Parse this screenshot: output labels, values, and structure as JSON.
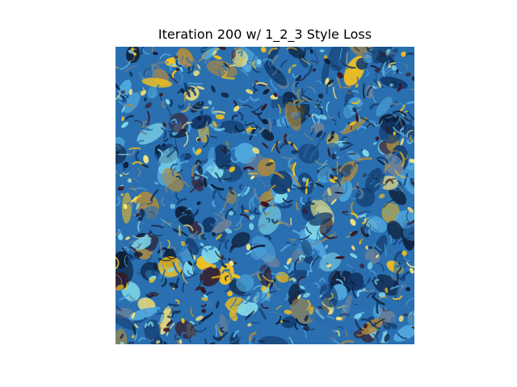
{
  "figure": {
    "title": "Iteration 200 w/ 1_2_3 Style Loss"
  },
  "image": {
    "description_icon": "stylized-texture-image",
    "palette": {
      "deep_blue": "#123a6b",
      "mid_blue": "#2a6fb0",
      "bright_blue": "#4fa6dc",
      "cyan": "#7fd6e8",
      "navy_dark": "#0d1f3a",
      "maroon": "#3a1720",
      "ochre": "#b08a3e",
      "gold": "#f0c020",
      "pale_yellow": "#f7e47a",
      "grey_blue": "#6d8298"
    }
  }
}
